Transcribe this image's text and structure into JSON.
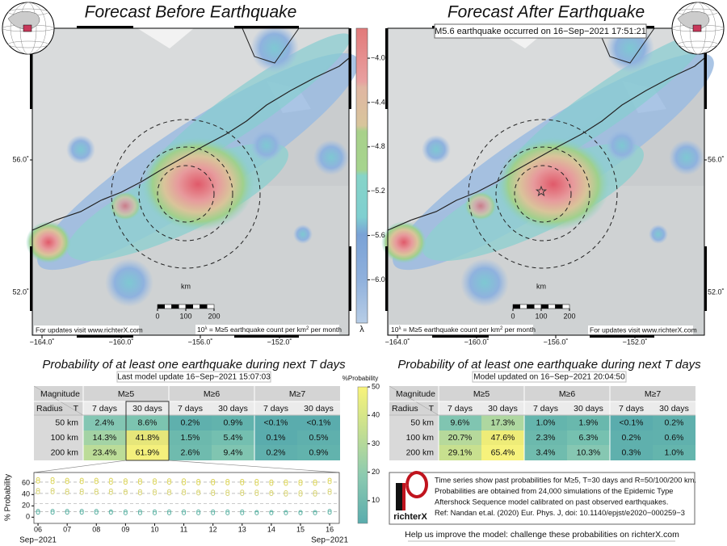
{
  "maps": [
    {
      "title": "Forecast Before Earthquake",
      "footer_url": "For updates visit www.richterX.com",
      "footnote": {
        "base": "10",
        "exp": "λ",
        "mid": " = M≥5 earthquake count per km",
        "sq": "2",
        "end": " per month"
      },
      "scale_unit": "km",
      "scale_ticks": [
        0,
        100,
        200
      ]
    },
    {
      "title": "Forecast After Earthquake",
      "banner": "M5.6 earthquake occurred on 16−Sep−2021 17:51:21",
      "footer_url": "For updates visit www.richterX.com",
      "footnote": {
        "base": "10",
        "exp": "λ",
        "mid": " = M≥5 earthquake count per km",
        "sq": "2",
        "end": " per month"
      },
      "scale_unit": "km",
      "scale_ticks": [
        0,
        100,
        200
      ]
    }
  ],
  "lon_ticks": [
    {
      "value": -164,
      "label": "−164.0˚"
    },
    {
      "value": -160,
      "label": "−160.0˚"
    },
    {
      "value": -156,
      "label": "−156.0˚"
    },
    {
      "value": -152,
      "label": "−152.0˚"
    }
  ],
  "lat_ticks": [
    {
      "value": 56,
      "label": "56.0˚"
    },
    {
      "value": 52,
      "label": "52.0˚"
    }
  ],
  "lambda_colorbar": {
    "label": "λ",
    "lim": [
      -6.39,
      -3.73
    ],
    "ticks": [
      {
        "value": -4,
        "label": "−4.0"
      },
      {
        "value": -4.4,
        "label": "−4.4"
      },
      {
        "value": -4.8,
        "label": "−4.8"
      },
      {
        "value": -5.2,
        "label": "−5.2"
      },
      {
        "value": -5.6,
        "label": "−5.6"
      },
      {
        "value": -6,
        "label": "−6.0"
      }
    ]
  },
  "tables": [
    {
      "title": "Probability of at least one earthquake during next T days",
      "subtitle": "Last model update 16−Sep−2021 15:07:03",
      "magnitude": "Magnitude",
      "radius": "Radius",
      "t": "T",
      "mags": [
        "M≥5",
        "M≥6",
        "M≥7"
      ],
      "days": [
        "7 days",
        "30 days",
        "7 days",
        "30 days",
        "7 days",
        "30 days"
      ],
      "rows": [
        {
          "label": "50 km",
          "cells": [
            "2.4%",
            "8.6%",
            "0.2%",
            "0.9%",
            "<0.1%",
            "<0.1%"
          ],
          "colors": [
            "#83c6b3",
            "#7cc4b0",
            "#5fb0ad",
            "#62b3ad",
            "#5aacad",
            "#5aacad"
          ]
        },
        {
          "label": "100 km",
          "cells": [
            "14.3%",
            "41.8%",
            "1.5%",
            "5.4%",
            "0.1%",
            "0.5%"
          ],
          "colors": [
            "#a3d3a5",
            "#e6e67a",
            "#6cb9ad",
            "#74bfb0",
            "#5aacad",
            "#5fb0ad"
          ]
        },
        {
          "label": "200 km",
          "cells": [
            "23.4%",
            "61.9%",
            "2.6%",
            "9.4%",
            "0.2%",
            "0.9%"
          ],
          "colors": [
            "#bcdc98",
            "#f4f07c",
            "#6fbbae",
            "#80c5b1",
            "#5fb0ad",
            "#62b3ad"
          ]
        }
      ]
    },
    {
      "title": "Probability of at least one earthquake during next T days",
      "subtitle": "Model updated on 16−Sep−2021 20:04:50",
      "magnitude": "Magnitude",
      "radius": "Radius",
      "t": "T",
      "mags": [
        "M≥5",
        "M≥6",
        "M≥7"
      ],
      "days": [
        "7 days",
        "30 days",
        "7 days",
        "30 days",
        "7 days",
        "30 days"
      ],
      "rows": [
        {
          "label": "50 km",
          "cells": [
            "9.6%",
            "17.3%",
            "1.0%",
            "1.9%",
            "<0.1%",
            "0.2%"
          ],
          "colors": [
            "#80c5b1",
            "#aed7a0",
            "#64b5ad",
            "#69b8ad",
            "#5aacad",
            "#5fb0ad"
          ]
        },
        {
          "label": "100 km",
          "cells": [
            "20.7%",
            "47.6%",
            "2.3%",
            "6.3%",
            "0.2%",
            "0.6%"
          ],
          "colors": [
            "#b6d99b",
            "#eeec78",
            "#6cb9ad",
            "#76c1b0",
            "#5fb0ad",
            "#60b1ad"
          ]
        },
        {
          "label": "200 km",
          "cells": [
            "29.1%",
            "65.4%",
            "3.4%",
            "10.3%",
            "0.3%",
            "1.0%"
          ],
          "colors": [
            "#c8e08f",
            "#f6f27c",
            "#70bcae",
            "#86c7b2",
            "#5fb0ad",
            "#64b5ad"
          ]
        }
      ]
    }
  ],
  "prob_colorbar": {
    "label": "%Probability",
    "lim": [
      2,
      50
    ],
    "ticks": [
      10,
      20,
      30,
      40,
      50
    ]
  },
  "chart_data": {
    "type": "scatter",
    "y_label": "% Probability",
    "xlim": [
      5.86,
      16.33
    ],
    "ylim": [
      -11,
      79
    ],
    "xticks": [
      {
        "value": 6,
        "label": "06"
      },
      {
        "value": 7,
        "label": "07"
      },
      {
        "value": 8,
        "label": "08"
      },
      {
        "value": 9,
        "label": "09"
      },
      {
        "value": 10,
        "label": "10"
      },
      {
        "value": 11,
        "label": "11"
      },
      {
        "value": 12,
        "label": "12"
      },
      {
        "value": 13,
        "label": "13"
      },
      {
        "value": 14,
        "label": "14"
      },
      {
        "value": 15,
        "label": "15"
      },
      {
        "value": 16,
        "label": "16"
      }
    ],
    "x_month_labels": [
      {
        "value": 6,
        "label": "Sep−2021"
      },
      {
        "value": 16,
        "label": "Sep−2021"
      }
    ],
    "yticks": [
      0,
      20,
      40,
      60
    ],
    "reference_lines": [
      62,
      42,
      24,
      10
    ],
    "x": [
      6,
      6.5,
      7,
      7.5,
      8,
      8.5,
      9,
      9.5,
      10,
      10.5,
      11,
      11.5,
      12,
      12.5,
      13,
      13.5,
      14,
      14.5,
      15,
      15.5,
      16
    ],
    "series": [
      {
        "color": "#dcd55a",
        "values": [
          67,
          67,
          66,
          66,
          66,
          66,
          65,
          65,
          65,
          65,
          65,
          64,
          64,
          64,
          64,
          64,
          63,
          63,
          63,
          63,
          66
        ]
      },
      {
        "color": "#dcd55a",
        "values": [
          63,
          62,
          62,
          62,
          62,
          61,
          61,
          61,
          61,
          61,
          60,
          60,
          60,
          60,
          60,
          59,
          59,
          59,
          59,
          59,
          62
        ]
      },
      {
        "color": "#d8d476",
        "values": [
          48,
          48,
          47,
          47,
          47,
          47,
          46,
          46,
          46,
          46,
          46,
          45,
          45,
          45,
          45,
          45,
          44,
          44,
          44,
          44,
          47
        ]
      },
      {
        "color": "#d8d476",
        "values": [
          44,
          44,
          43,
          43,
          43,
          43,
          43,
          42,
          42,
          42,
          42,
          42,
          41,
          41,
          41,
          41,
          41,
          40,
          40,
          40,
          43
        ]
      },
      {
        "color": "#5fb3a5",
        "values": [
          11,
          11,
          11,
          11,
          11,
          10,
          10,
          10,
          10,
          10,
          10,
          10,
          10,
          10,
          10,
          9,
          9,
          9,
          9,
          9,
          11
        ]
      },
      {
        "color": "#5fb3a5",
        "values": [
          8,
          8,
          8,
          8,
          8,
          8,
          7,
          7,
          7,
          7,
          7,
          7,
          7,
          7,
          7,
          7,
          7,
          7,
          7,
          7,
          8
        ]
      }
    ]
  },
  "info": {
    "lines": [
      "Time series show past probabilities for M≥5, T=30 days and R=50/100/200 km.",
      "Probabilities are obtained from 24,000 simulations of the Epidemic Type",
      "Aftershock Sequence model calibrated on past observed earthquakes.",
      "Ref: Nandan et.al. (2020) Eur. Phys. J, doi: 10.1140/epjst/e2020−000259−3"
    ],
    "logo": "richterX",
    "help": "Help us improve the model: challenge these probabilities on richterX.com"
  }
}
